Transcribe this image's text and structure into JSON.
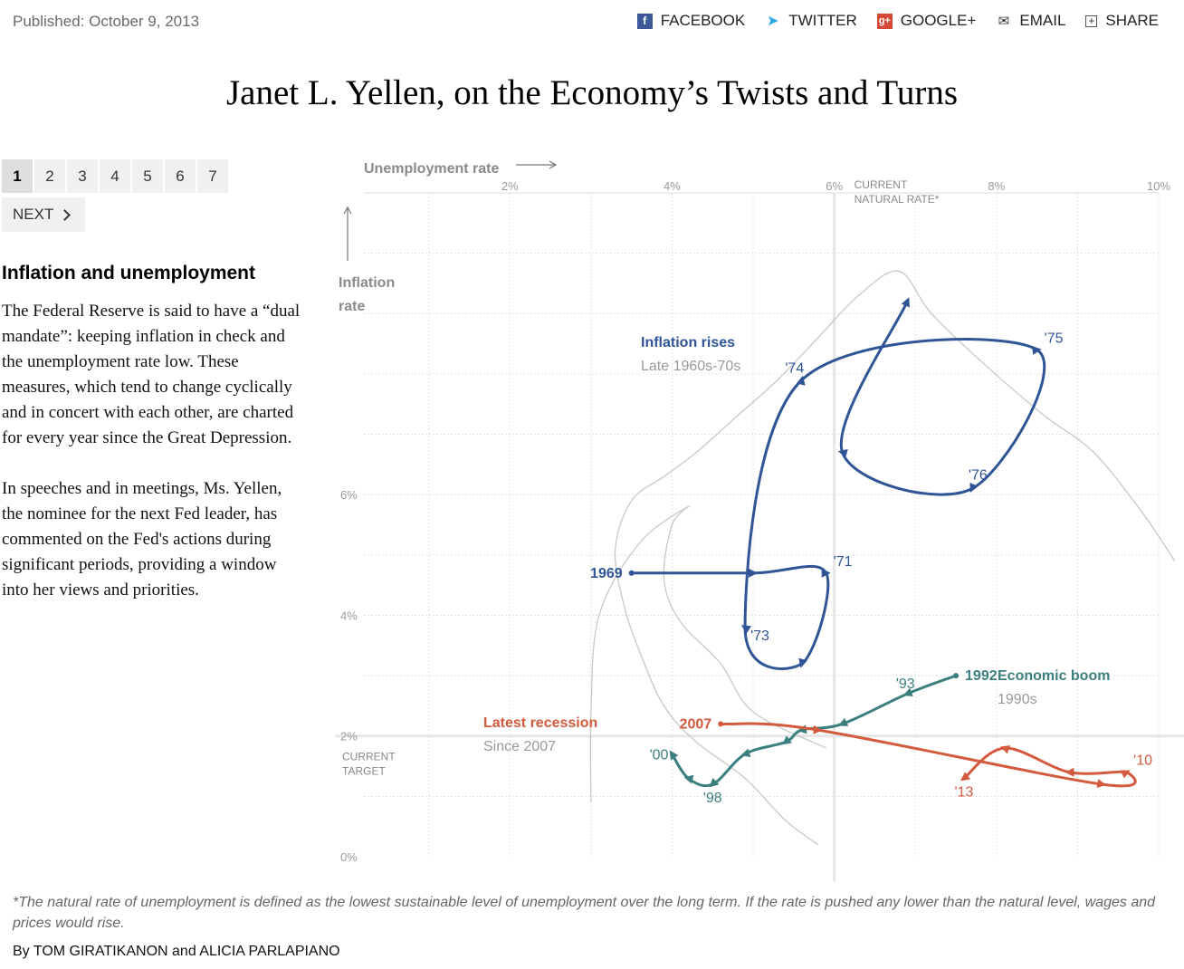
{
  "header": {
    "published": "Published: October 9, 2013",
    "share": [
      {
        "label": "FACEBOOK",
        "icon": "facebook-icon"
      },
      {
        "label": "TWITTER",
        "icon": "twitter-icon"
      },
      {
        "label": "GOOGLE+",
        "icon": "google-plus-icon"
      },
      {
        "label": "EMAIL",
        "icon": "email-icon"
      },
      {
        "label": "SHARE",
        "icon": "share-icon"
      }
    ]
  },
  "title": "Janet L. Yellen, on the Economy’s Twists and Turns",
  "pager": {
    "pages": [
      "1",
      "2",
      "3",
      "4",
      "5",
      "6",
      "7"
    ],
    "active": "1",
    "next": "NEXT"
  },
  "section": {
    "title": "Inflation and unemployment",
    "paragraphs": [
      "The Federal Reserve is said to have a “dual mandate”: keeping inflation in check and the unemployment rate low. These measures, which tend to change cyclically and in concert with each other, are charted for every year since the Great Depression.",
      "In speeches and in meetings, Ms. Yellen, the nominee for the next Fed leader, has commented on the Fed's actions during significant periods, providing a window into her views and priorities."
    ]
  },
  "footnote": "*The natural rate of unemployment is defined as the lowest sustainable level of unemployment over the long term. If the rate is pushed any lower than the natural level, wages and prices would rise.",
  "byline": "By TOM GIRATIKANON and ALICIA PARLAPIANO",
  "chart_data": {
    "type": "line",
    "xlabel": "Unemployment rate",
    "ylabel": "Inflation rate",
    "xlim": [
      0.2,
      10
    ],
    "ylim": [
      0,
      11
    ],
    "x_ticks": [
      "2%",
      "4%",
      "6%",
      "8%",
      "10%"
    ],
    "x_tick_values": [
      2,
      4,
      6,
      8,
      10
    ],
    "y_ticks": [
      "0%",
      "2%",
      "4%",
      "6%"
    ],
    "y_tick_values": [
      0,
      2,
      4,
      6
    ],
    "reference_lines": [
      {
        "axis": "x",
        "value": 6,
        "label_lines": [
          "CURRENT",
          "NATURAL RATE*"
        ]
      },
      {
        "axis": "y",
        "value": 2,
        "label_lines": [
          "CURRENT",
          "TARGET"
        ]
      }
    ],
    "grid": true,
    "background_series": {
      "color": "#c8c8c8",
      "points": [
        [
          5.8,
          0.2
        ],
        [
          5.4,
          0.6
        ],
        [
          4.9,
          1.3
        ],
        [
          4.3,
          1.9
        ],
        [
          3.9,
          2.5
        ],
        [
          3.6,
          3.4
        ],
        [
          3.4,
          4.2
        ],
        [
          3.3,
          5.1
        ],
        [
          3.5,
          5.9
        ],
        [
          3.9,
          6.3
        ],
        [
          4.3,
          6.7
        ],
        [
          4.8,
          7.3
        ],
        [
          5.3,
          7.9
        ],
        [
          5.8,
          8.6
        ],
        [
          6.3,
          9.3
        ],
        [
          6.8,
          9.7
        ],
        [
          7.2,
          9.0
        ],
        [
          7.9,
          8.1
        ],
        [
          8.6,
          7.3
        ],
        [
          9.2,
          6.7
        ],
        [
          9.8,
          5.7
        ],
        [
          10.2,
          4.9
        ]
      ]
    },
    "background_series_2": {
      "color": "#c8c8c8",
      "points": [
        [
          5.9,
          1.8
        ],
        [
          5.0,
          2.4
        ],
        [
          4.6,
          3.2
        ],
        [
          4.1,
          3.9
        ],
        [
          3.9,
          4.6
        ],
        [
          4.0,
          5.5
        ],
        [
          4.2,
          5.8
        ],
        [
          3.6,
          5.2
        ],
        [
          3.1,
          4.0
        ],
        [
          3.0,
          2.4
        ],
        [
          3.0,
          0.9
        ]
      ]
    },
    "series": [
      {
        "name": "Inflation rises",
        "subtitle": "Late 1960s-70s",
        "color": "#2f5597",
        "points": [
          [
            3.5,
            4.7
          ],
          [
            5.0,
            4.7
          ],
          [
            5.9,
            4.7
          ],
          [
            5.6,
            3.2
          ],
          [
            4.9,
            3.8
          ],
          [
            5.6,
            7.9
          ],
          [
            8.5,
            8.4
          ],
          [
            7.7,
            6.1
          ],
          [
            6.1,
            6.7
          ],
          [
            6.9,
            9.2
          ]
        ],
        "point_labels": [
          {
            "index": 0,
            "label": "1969"
          },
          {
            "index": 2,
            "label": "'71"
          },
          {
            "index": 4,
            "label": "'73"
          },
          {
            "index": 5,
            "label": "'74"
          },
          {
            "index": 6,
            "label": "'75"
          },
          {
            "index": 7,
            "label": "'76"
          }
        ]
      },
      {
        "name": "Economic boom",
        "subtitle": "1990s",
        "color": "#3b7f7e",
        "points": [
          [
            7.5,
            3.0
          ],
          [
            6.9,
            2.7
          ],
          [
            6.1,
            2.2
          ],
          [
            5.6,
            2.1
          ],
          [
            5.4,
            1.9
          ],
          [
            4.9,
            1.7
          ],
          [
            4.5,
            1.2
          ],
          [
            4.2,
            1.3
          ],
          [
            4.0,
            1.7
          ]
        ],
        "point_labels": [
          {
            "index": 0,
            "label": "1992"
          },
          {
            "index": 1,
            "label": "'93"
          },
          {
            "index": 6,
            "label": "'98"
          },
          {
            "index": 8,
            "label": "'00"
          }
        ]
      },
      {
        "name": "Latest recession",
        "subtitle": "Since 2007",
        "color": "#d45a3d",
        "points": [
          [
            4.6,
            2.2
          ],
          [
            5.8,
            2.1
          ],
          [
            9.3,
            1.2
          ],
          [
            9.6,
            1.4
          ],
          [
            8.9,
            1.4
          ],
          [
            8.1,
            1.8
          ],
          [
            7.6,
            1.3
          ]
        ],
        "point_labels": [
          {
            "index": 0,
            "label": "2007"
          },
          {
            "index": 3,
            "label": "'10"
          },
          {
            "index": 6,
            "label": "'13"
          }
        ]
      }
    ]
  }
}
